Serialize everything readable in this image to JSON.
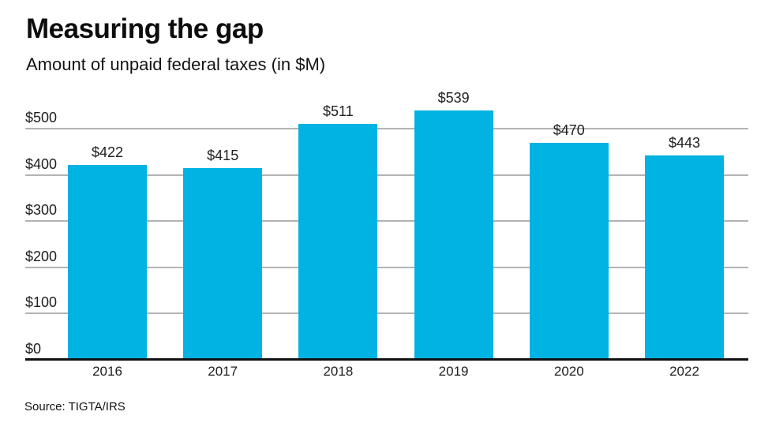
{
  "chart_data": {
    "type": "bar",
    "title": "Measuring the gap",
    "subtitle": "Amount of unpaid federal taxes (in $M)",
    "source": "Source: TIGTA/IRS",
    "categories": [
      "2016",
      "2017",
      "2018",
      "2019",
      "2020",
      "2022"
    ],
    "values": [
      422,
      415,
      511,
      539,
      470,
      443
    ],
    "value_labels": [
      "$422",
      "$415",
      "$511",
      "$539",
      "$470",
      "$443"
    ],
    "ytick_values": [
      0,
      100,
      200,
      300,
      400,
      500
    ],
    "ytick_labels": [
      "$0",
      "$100",
      "$200",
      "$300",
      "$400",
      "$500"
    ],
    "ylim": [
      0,
      560
    ],
    "xlabel": "",
    "ylabel": "",
    "grid": true,
    "legend": false,
    "bar_color": "#00b3e2",
    "grid_color": "#b3b3b3",
    "axis_color": "#111111",
    "text_color": "#1a1a1a",
    "background_color": "#ffffff"
  }
}
